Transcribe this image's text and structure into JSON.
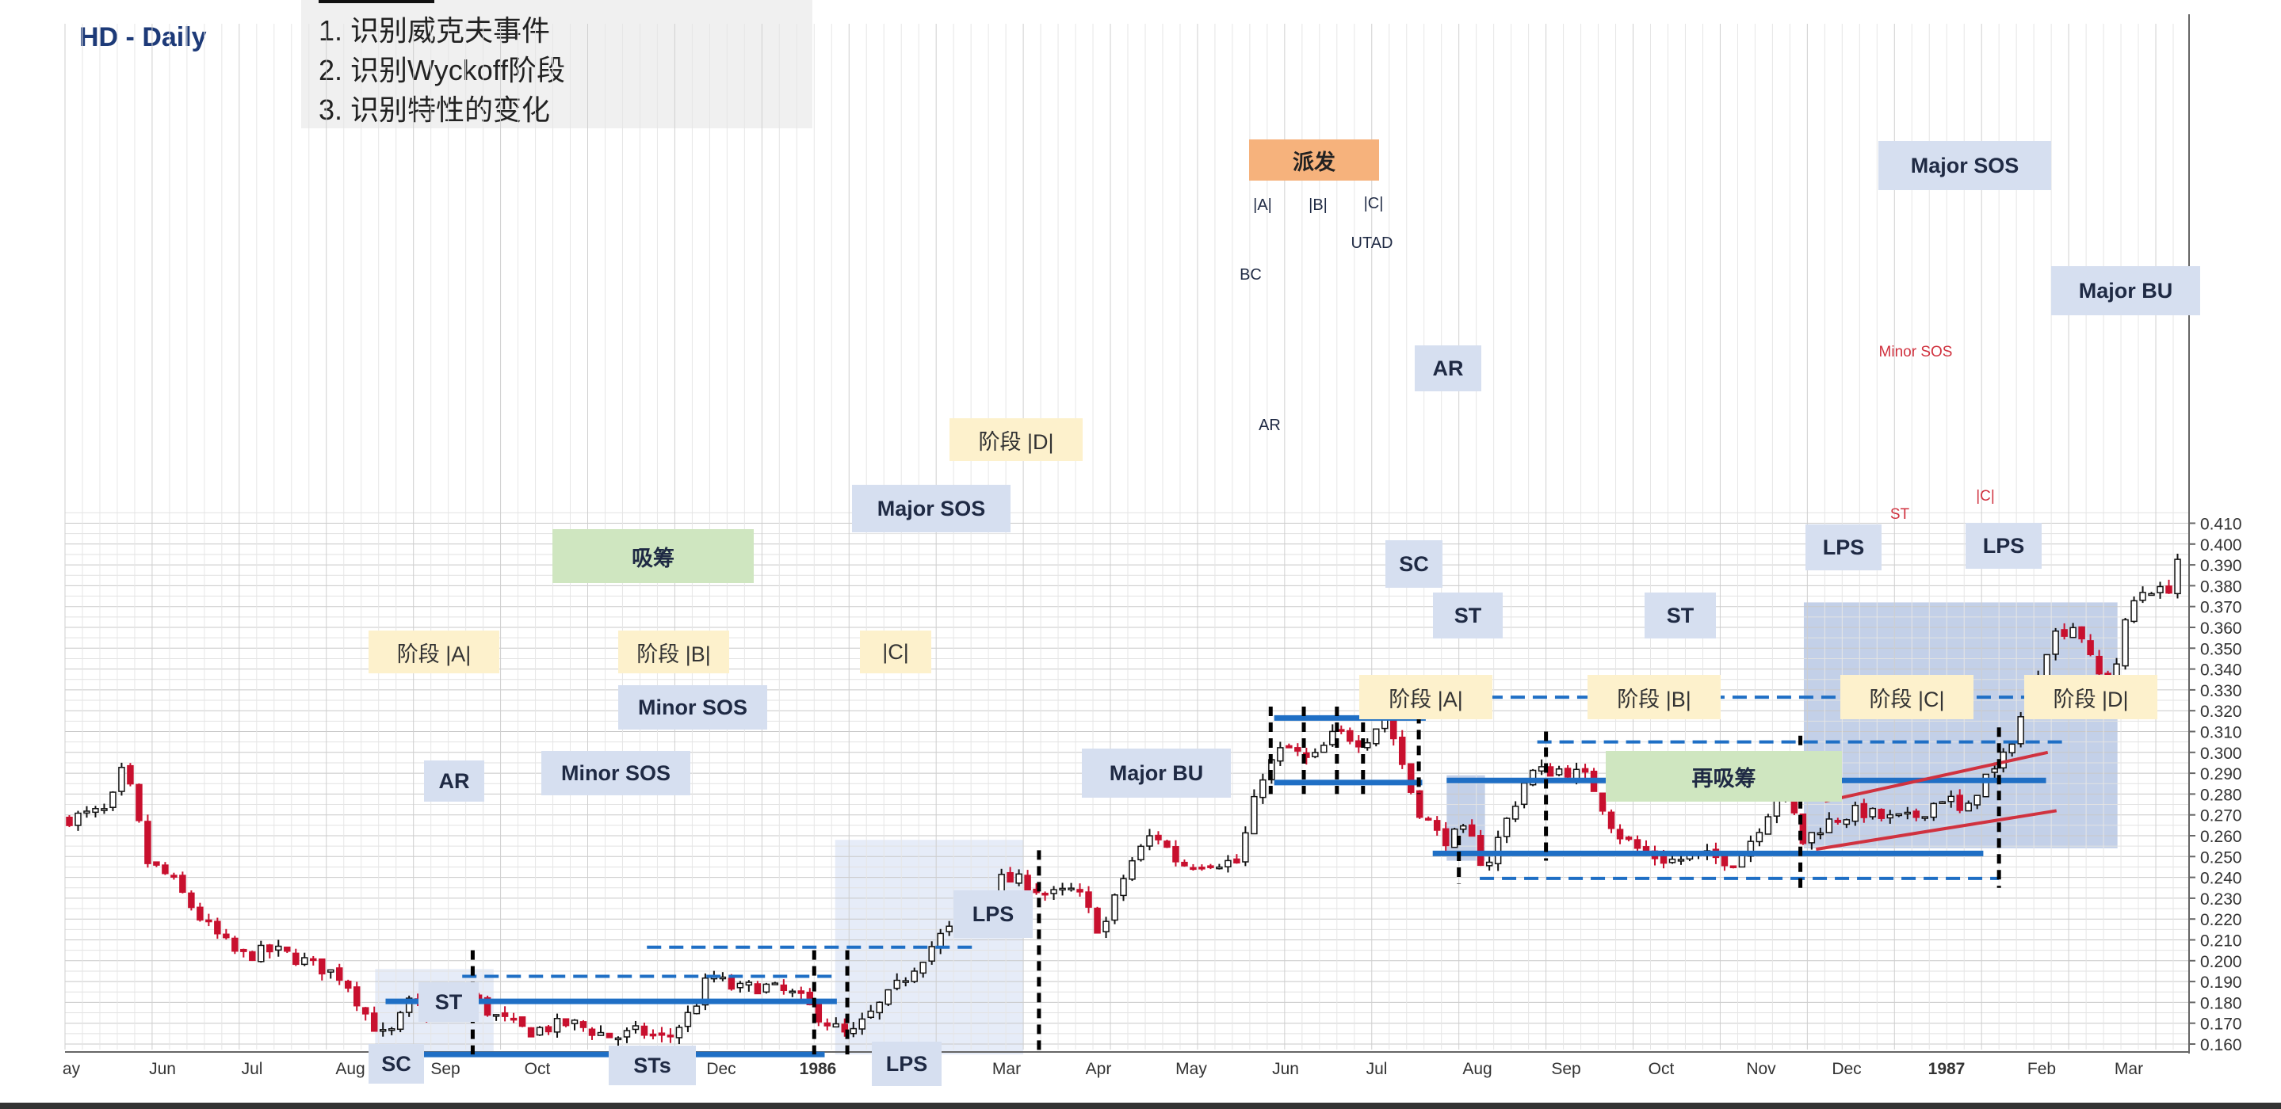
{
  "title": "HD - Daily",
  "tasks": [
    "1.  识别威克夫事件",
    "2.  识别Wyckoff阶段",
    "3.  识别特性的变化"
  ],
  "chart_data": {
    "type": "candlestick",
    "ylim": [
      0.15,
      0.415
    ],
    "y_ticks": [
      "0.160",
      "0.170",
      "0.180",
      "0.190",
      "0.200",
      "0.210",
      "0.220",
      "0.230",
      "0.240",
      "0.250",
      "0.260",
      "0.270",
      "0.280",
      "0.290",
      "0.300",
      "0.310",
      "0.320",
      "0.330",
      "0.340",
      "0.350",
      "0.360",
      "0.370",
      "0.380",
      "0.390",
      "0.400",
      "0.410"
    ],
    "x_ticks": [
      "ay",
      "Jun",
      "Jul",
      "Aug",
      "Sep",
      "Oct",
      "Nov",
      "Dec",
      "1986",
      "Feb",
      "Mar",
      "Apr",
      "May",
      "Jun",
      "Jul",
      "Aug",
      "Sep",
      "Oct",
      "Nov",
      "Dec",
      "1987",
      "Feb",
      "Mar"
    ],
    "price_path": [
      {
        "t": 0,
        "p": 0.268
      },
      {
        "t": 2.5,
        "p": 0.272
      },
      {
        "t": 3.3,
        "p": 0.291
      },
      {
        "t": 4.0,
        "p": 0.277
      },
      {
        "t": 4.6,
        "p": 0.248
      },
      {
        "t": 6.0,
        "p": 0.24
      },
      {
        "t": 8.0,
        "p": 0.218
      },
      {
        "t": 10.0,
        "p": 0.202
      },
      {
        "t": 12.0,
        "p": 0.205
      },
      {
        "t": 14.0,
        "p": 0.199
      },
      {
        "t": 16.0,
        "p": 0.192
      },
      {
        "t": 17.5,
        "p": 0.171
      },
      {
        "t": 18.5,
        "p": 0.162
      },
      {
        "t": 19.8,
        "p": 0.18
      },
      {
        "t": 21.2,
        "p": 0.174
      },
      {
        "t": 23.0,
        "p": 0.186
      },
      {
        "t": 24.5,
        "p": 0.174
      },
      {
        "t": 26.5,
        "p": 0.166
      },
      {
        "t": 29.0,
        "p": 0.17
      },
      {
        "t": 31.5,
        "p": 0.163
      },
      {
        "t": 33.0,
        "p": 0.166
      },
      {
        "t": 34.5,
        "p": 0.162
      },
      {
        "t": 36.0,
        "p": 0.176
      },
      {
        "t": 37.0,
        "p": 0.193
      },
      {
        "t": 38.5,
        "p": 0.186
      },
      {
        "t": 40.0,
        "p": 0.188
      },
      {
        "t": 42.0,
        "p": 0.183
      },
      {
        "t": 43.5,
        "p": 0.172
      },
      {
        "t": 45.0,
        "p": 0.163
      },
      {
        "t": 46.0,
        "p": 0.172
      },
      {
        "t": 47.5,
        "p": 0.185
      },
      {
        "t": 49.0,
        "p": 0.2
      },
      {
        "t": 50.5,
        "p": 0.214
      },
      {
        "t": 52.0,
        "p": 0.218
      },
      {
        "t": 53.5,
        "p": 0.239
      },
      {
        "t": 55.0,
        "p": 0.238
      },
      {
        "t": 56.5,
        "p": 0.231
      },
      {
        "t": 58.0,
        "p": 0.234
      },
      {
        "t": 59.5,
        "p": 0.213
      },
      {
        "t": 61.0,
        "p": 0.245
      },
      {
        "t": 62.5,
        "p": 0.262
      },
      {
        "t": 64.0,
        "p": 0.246
      },
      {
        "t": 65.5,
        "p": 0.248
      },
      {
        "t": 67.3,
        "p": 0.247
      },
      {
        "t": 68.7,
        "p": 0.289
      },
      {
        "t": 70.0,
        "p": 0.303
      },
      {
        "t": 71.5,
        "p": 0.295
      },
      {
        "t": 73.0,
        "p": 0.31
      },
      {
        "t": 74.5,
        "p": 0.305
      },
      {
        "t": 75.8,
        "p": 0.318
      },
      {
        "t": 76.5,
        "p": 0.301
      },
      {
        "t": 77.5,
        "p": 0.275
      },
      {
        "t": 79.0,
        "p": 0.258
      },
      {
        "t": 80.5,
        "p": 0.262
      },
      {
        "t": 81.5,
        "p": 0.244
      },
      {
        "t": 82.5,
        "p": 0.263
      },
      {
        "t": 84.0,
        "p": 0.29
      },
      {
        "t": 86.0,
        "p": 0.292
      },
      {
        "t": 87.5,
        "p": 0.287
      },
      {
        "t": 89.0,
        "p": 0.262
      },
      {
        "t": 90.5,
        "p": 0.252
      },
      {
        "t": 92.0,
        "p": 0.248
      },
      {
        "t": 94.0,
        "p": 0.25
      },
      {
        "t": 96.0,
        "p": 0.248
      },
      {
        "t": 97.5,
        "p": 0.268
      },
      {
        "t": 98.8,
        "p": 0.287
      },
      {
        "t": 99.6,
        "p": 0.256
      },
      {
        "t": 101.0,
        "p": 0.266
      },
      {
        "t": 103.0,
        "p": 0.272
      },
      {
        "t": 104.5,
        "p": 0.268
      },
      {
        "t": 106.0,
        "p": 0.268
      },
      {
        "t": 108.0,
        "p": 0.28
      },
      {
        "t": 109.0,
        "p": 0.268
      },
      {
        "t": 110.0,
        "p": 0.287
      },
      {
        "t": 111.0,
        "p": 0.292
      },
      {
        "t": 112.5,
        "p": 0.322
      },
      {
        "t": 114.0,
        "p": 0.356
      },
      {
        "t": 115.5,
        "p": 0.362
      },
      {
        "t": 116.5,
        "p": 0.338
      },
      {
        "t": 117.5,
        "p": 0.334
      },
      {
        "t": 118.5,
        "p": 0.37
      },
      {
        "t": 119.5,
        "p": 0.38
      },
      {
        "t": 120.4,
        "p": 0.376
      },
      {
        "t": 121.0,
        "p": 0.382
      },
      {
        "t": 121.5,
        "p": 0.404
      }
    ],
    "levels": [
      {
        "name": "accum-resistance",
        "y": 0.1805,
        "from": 18.4,
        "to": 44.3,
        "style": "solid"
      },
      {
        "name": "accum-support",
        "y": 0.155,
        "from": 17.8,
        "to": 43.6,
        "style": "solid"
      },
      {
        "name": "accum-ar-line",
        "y": 0.1925,
        "from": 22.8,
        "to": 44.3,
        "style": "dashed"
      },
      {
        "name": "accum-sos-line",
        "y": 0.2065,
        "from": 33.4,
        "to": 52.5,
        "style": "dashed"
      },
      {
        "name": "dist-top",
        "y": 0.3165,
        "from": 69.4,
        "to": 78.1,
        "style": "solid"
      },
      {
        "name": "dist-bottom",
        "y": 0.2855,
        "from": 69.4,
        "to": 77.9,
        "style": "solid"
      },
      {
        "name": "utad-dashed",
        "y": 0.3265,
        "from": 76.6,
        "to": 118.5,
        "style": "dashed"
      },
      {
        "name": "reacc-upper-dashed",
        "y": 0.305,
        "from": 84.5,
        "to": 114.7,
        "style": "dashed"
      },
      {
        "name": "reacc-resistance",
        "y": 0.2865,
        "from": 79.3,
        "to": 113.7,
        "style": "solid"
      },
      {
        "name": "reacc-support",
        "y": 0.2515,
        "from": 78.5,
        "to": 110.1,
        "style": "solid"
      },
      {
        "name": "reacc-lower-dashed",
        "y": 0.2395,
        "from": 81.2,
        "to": 111.0,
        "style": "dashed"
      }
    ],
    "trendlines": [
      {
        "name": "channel-upper",
        "x1": 101.0,
        "y1": 0.2765,
        "x2": 113.8,
        "y2": 0.3
      },
      {
        "name": "channel-lower",
        "x1": 100.5,
        "y1": 0.2535,
        "x2": 114.3,
        "y2": 0.272
      }
    ],
    "phase_markers_t": [
      23.4,
      43.0,
      44.9,
      55.9,
      69.2,
      71.1,
      73.0,
      74.5,
      77.7,
      80.0,
      85.0,
      99.6,
      111.0
    ],
    "shaded_ranges": [
      {
        "from": 17.8,
        "to": 24.6,
        "y_low": 0.154,
        "y_high": 0.196,
        "tone": "light"
      },
      {
        "from": 44.2,
        "to": 55.0,
        "y_low": 0.155,
        "y_high": 0.258,
        "tone": "light"
      },
      {
        "from": 79.3,
        "to": 81.5,
        "y_low": 0.248,
        "y_high": 0.289,
        "tone": "mid"
      },
      {
        "from": 99.8,
        "to": 117.8,
        "y_low": 0.254,
        "y_high": 0.372,
        "tone": "mid"
      }
    ]
  },
  "annotations": {
    "sc": "SC",
    "st": "ST",
    "ar": "AR",
    "sts": "STs",
    "lps": "LPS",
    "minor_sos": "Minor SOS",
    "major_sos": "Major SOS",
    "major_bu": "Major BU",
    "phase_a": "阶段 |A|",
    "phase_b": "阶段 |B|",
    "phase_c": "|C|",
    "phase_d": "阶段 |D|",
    "phase_a2": "阶段  |A|",
    "phase_b2": "阶段  |B|",
    "phase_c2": "阶段  |C|",
    "phase_d2": "阶段  |D|",
    "accumulation": "吸筹",
    "distribution": "派发",
    "reaccumulation": "再吸筹",
    "dist_a": "|A|",
    "dist_b": "|B|",
    "dist_c": "|C|",
    "utad": "UTAD",
    "bc": "BC",
    "minor_sos_small": "Minor SOS",
    "st_small": "ST",
    "c_small": "|C|"
  }
}
